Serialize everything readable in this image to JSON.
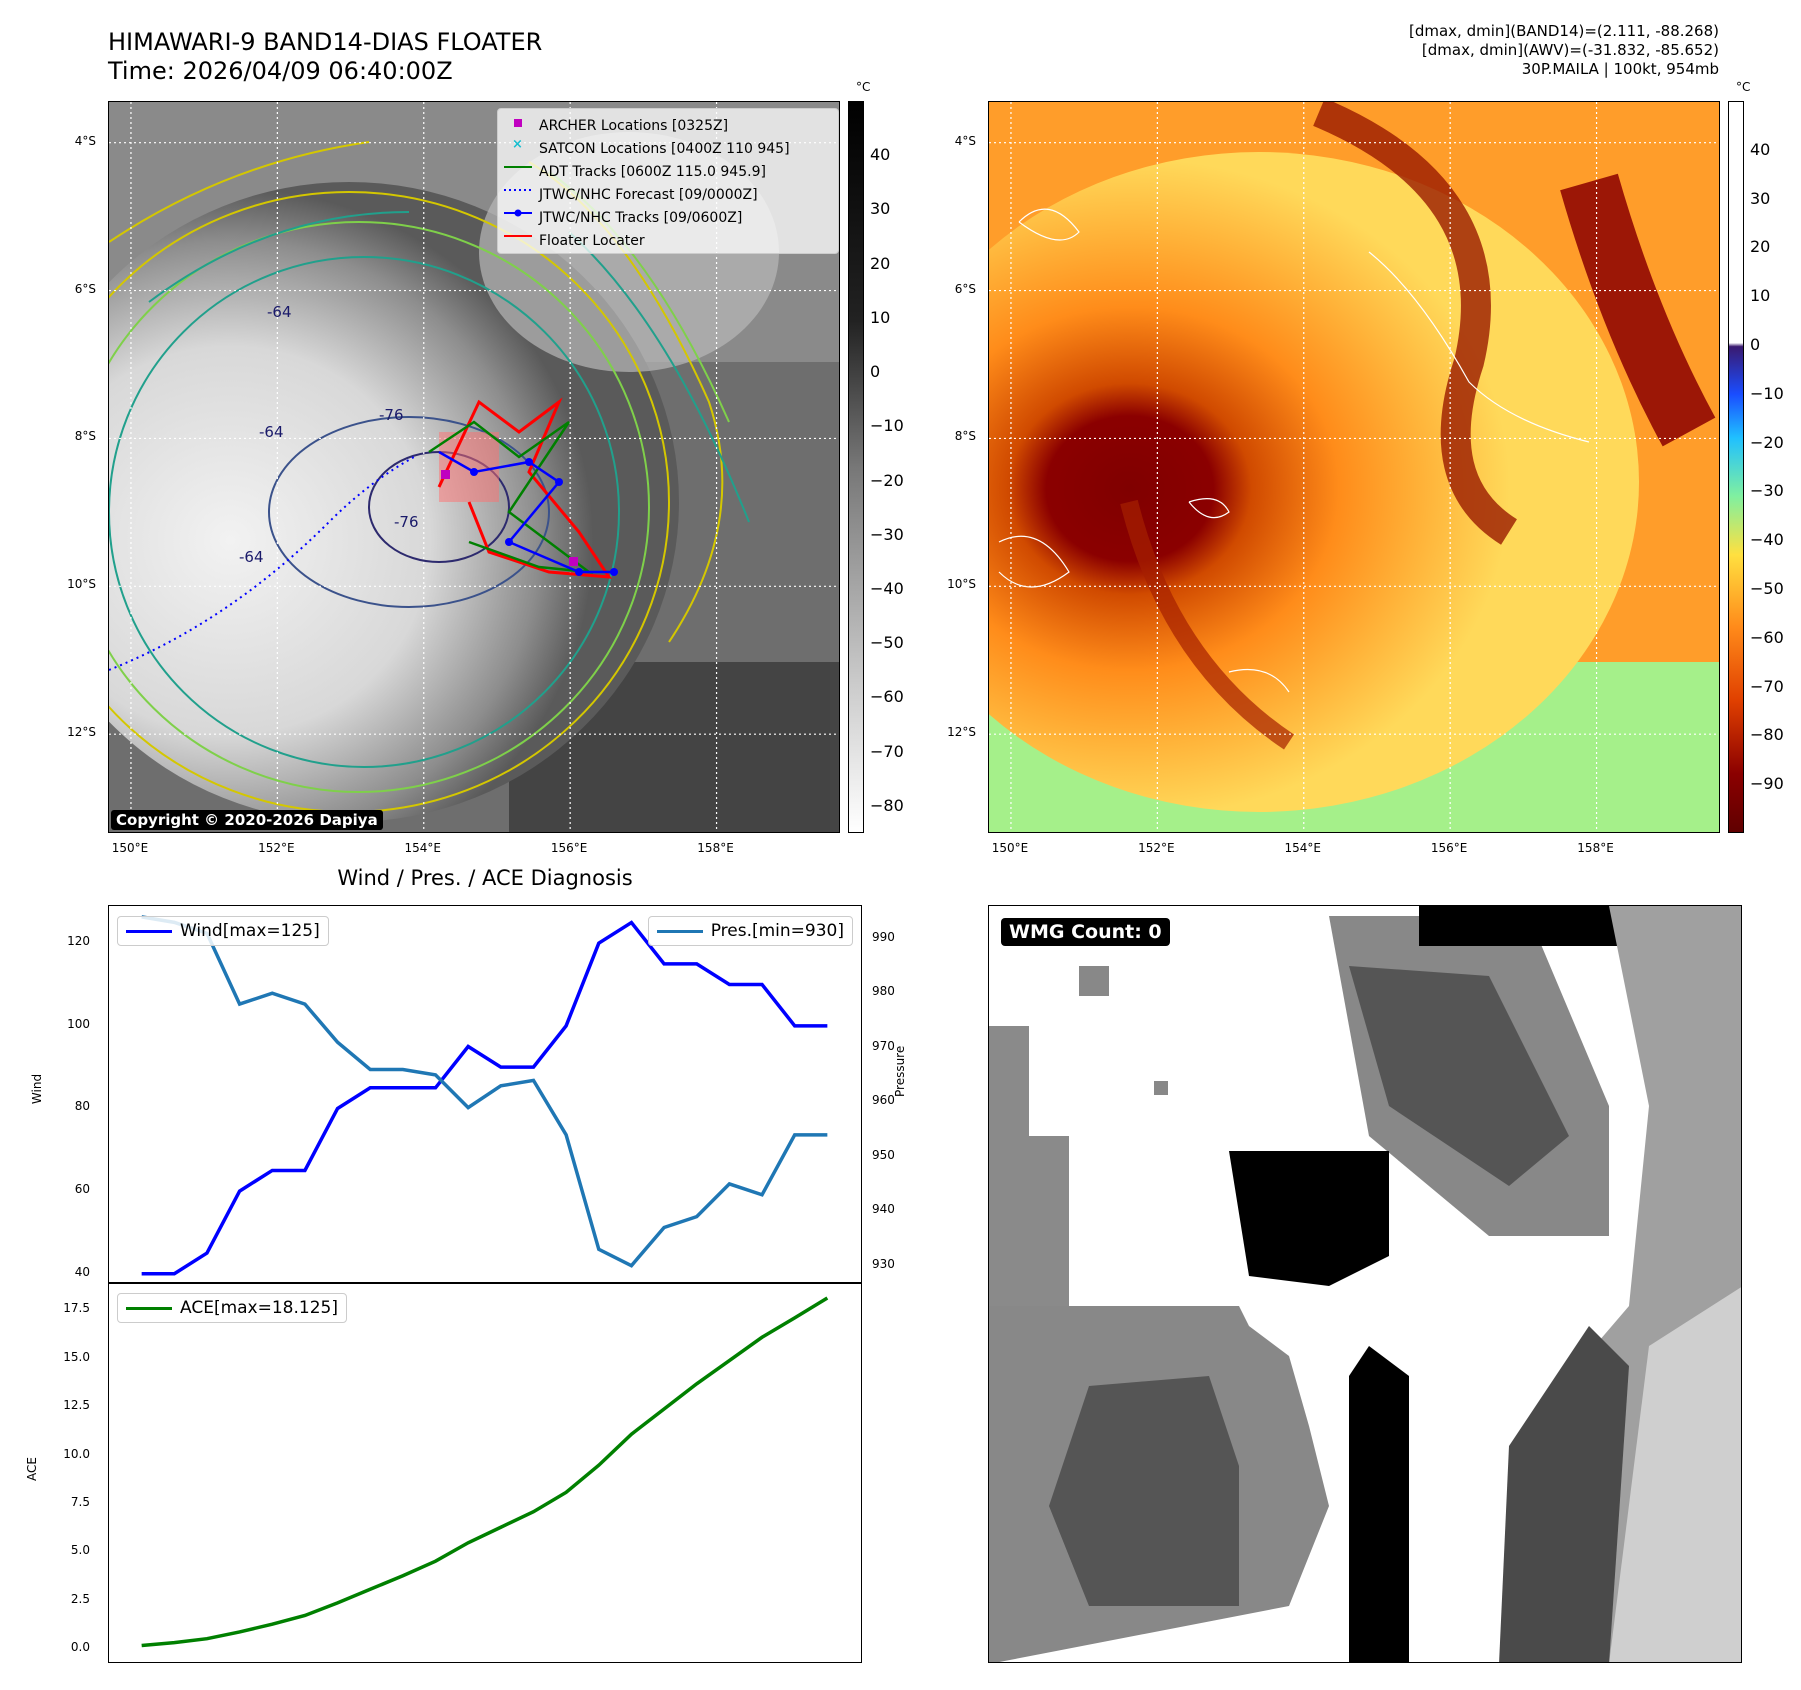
{
  "header": {
    "title_line1": "HIMAWARI-9 BAND14-DIAS FLOATER",
    "title_line2": "Time: 2026/04/09 06:40:00Z",
    "info_line1": "[dmax, dmin](BAND14)=(2.111, -88.268)",
    "info_line2": "[dmax, dmin](AWV)=(-31.832, -85.652)",
    "info_line3": "30P.MAILA | 100kt, 954mb"
  },
  "map_axes": {
    "lat_labels": [
      "4°S",
      "6°S",
      "8°S",
      "10°S",
      "12°S"
    ],
    "lon_labels": [
      "150°E",
      "152°E",
      "154°E",
      "156°E",
      "158°E"
    ],
    "lat_values": [
      -4,
      -6,
      -8,
      -10,
      -12
    ],
    "lon_values": [
      150,
      152,
      154,
      156,
      158
    ],
    "lat_range": [
      -13.35,
      -3.45
    ],
    "lon_range": [
      149.7,
      159.7
    ]
  },
  "map_left": {
    "legend": [
      {
        "label": "ARCHER Locations [0325Z]",
        "color": "#c000c0",
        "marker": "square"
      },
      {
        "label": "SATCON Locations [0400Z 110 945]",
        "color": "#17becf",
        "marker": "x"
      },
      {
        "label": "ADT Tracks [0600Z 115.0 945.9]",
        "color": "#008000",
        "marker": "line"
      },
      {
        "label": "JTWC/NHC Forecast [09/0000Z]",
        "color": "#0000ff",
        "marker": "dotted"
      },
      {
        "label": "JTWC/NHC Tracks [09/0600Z]",
        "color": "#0000ff",
        "marker": "line-dot"
      },
      {
        "label": "Floater Locater",
        "color": "#ff0000",
        "marker": "line"
      }
    ],
    "copyright": "Copyright © 2020-2026 Dapiya",
    "contour_labels": [
      "-64",
      "-64",
      "-76",
      "-76",
      "-64"
    ],
    "colorbar": {
      "unit": "°C",
      "ticks": [
        "40",
        "30",
        "20",
        "10",
        "0",
        "−10",
        "−20",
        "−30",
        "−40",
        "−50",
        "−60",
        "−70",
        "−80"
      ],
      "tick_values": [
        40,
        30,
        20,
        10,
        0,
        -10,
        -20,
        -30,
        -40,
        -50,
        -60,
        -70,
        -80
      ],
      "range": [
        -85,
        50
      ]
    }
  },
  "map_right": {
    "colorbar": {
      "unit": "°C",
      "ticks": [
        "40",
        "30",
        "20",
        "10",
        "0",
        "−10",
        "−20",
        "−30",
        "−40",
        "−50",
        "−60",
        "−70",
        "−80",
        "−90"
      ],
      "tick_values": [
        40,
        30,
        20,
        10,
        0,
        -10,
        -20,
        -30,
        -40,
        -50,
        -60,
        -70,
        -80,
        -90
      ],
      "range": [
        -100,
        50
      ]
    }
  },
  "diagnosis": {
    "title": "Wind / Pres. / ACE Diagnosis",
    "wind_axis_label": "Wind",
    "pressure_axis_label": "Pressure",
    "ace_axis_label": "ACE",
    "wind_legend": "Wind[max=125]",
    "pres_legend": "Pres.[min=930]",
    "ace_legend": "ACE[max=18.125]",
    "wind_ticks": [
      "120",
      "100",
      "80",
      "60",
      "40"
    ],
    "pres_ticks": [
      "990",
      "980",
      "970",
      "960",
      "950",
      "940",
      "930"
    ],
    "ace_ticks": [
      "17.5",
      "15.0",
      "12.5",
      "10.0",
      "7.5",
      "5.0",
      "2.5",
      "0.0"
    ]
  },
  "wmg": {
    "label": "WMG Count: 0"
  },
  "chart_data": [
    {
      "type": "line",
      "title": "Wind / Pres. / ACE Diagnosis",
      "x": [
        0,
        1,
        2,
        3,
        4,
        5,
        6,
        7,
        8,
        9,
        10,
        11,
        12,
        13,
        14,
        15,
        16,
        17,
        18,
        19,
        20,
        21
      ],
      "xlim": [
        -1,
        22
      ],
      "ylabel": "Wind",
      "ylim": [
        38,
        129
      ],
      "y2label": "Pressure",
      "y2lim": [
        927,
        996
      ],
      "series": [
        {
          "name": "Wind[max=125]",
          "axis": "left",
          "color": "#0000ff",
          "values": [
            40,
            40,
            45,
            60,
            65,
            65,
            80,
            85,
            85,
            85,
            95,
            90,
            90,
            100,
            120,
            125,
            115,
            115,
            110,
            110,
            100,
            100
          ]
        },
        {
          "name": "Pres.[min=930]",
          "axis": "right",
          "color": "#1f77b4",
          "values": [
            994,
            993,
            991,
            978,
            980,
            978,
            971,
            966,
            966,
            965,
            959,
            963,
            964,
            954,
            933,
            930,
            937,
            939,
            945,
            943,
            954,
            954
          ]
        }
      ]
    },
    {
      "type": "line",
      "ylabel": "ACE",
      "x": [
        0,
        1,
        2,
        3,
        4,
        5,
        6,
        7,
        8,
        9,
        10,
        11,
        12,
        13,
        14,
        15,
        16,
        17,
        18,
        19,
        20,
        21
      ],
      "xlim": [
        -1,
        22
      ],
      "ylim": [
        -0.6,
        18.9
      ],
      "series": [
        {
          "name": "ACE[max=18.125]",
          "color": "#008000",
          "values": [
            0.2,
            0.35,
            0.55,
            0.9,
            1.3,
            1.75,
            2.4,
            3.1,
            3.8,
            4.55,
            5.5,
            6.3,
            7.1,
            8.1,
            9.5,
            11.1,
            12.4,
            13.7,
            14.9,
            16.1,
            17.1,
            18.125
          ]
        }
      ]
    }
  ]
}
